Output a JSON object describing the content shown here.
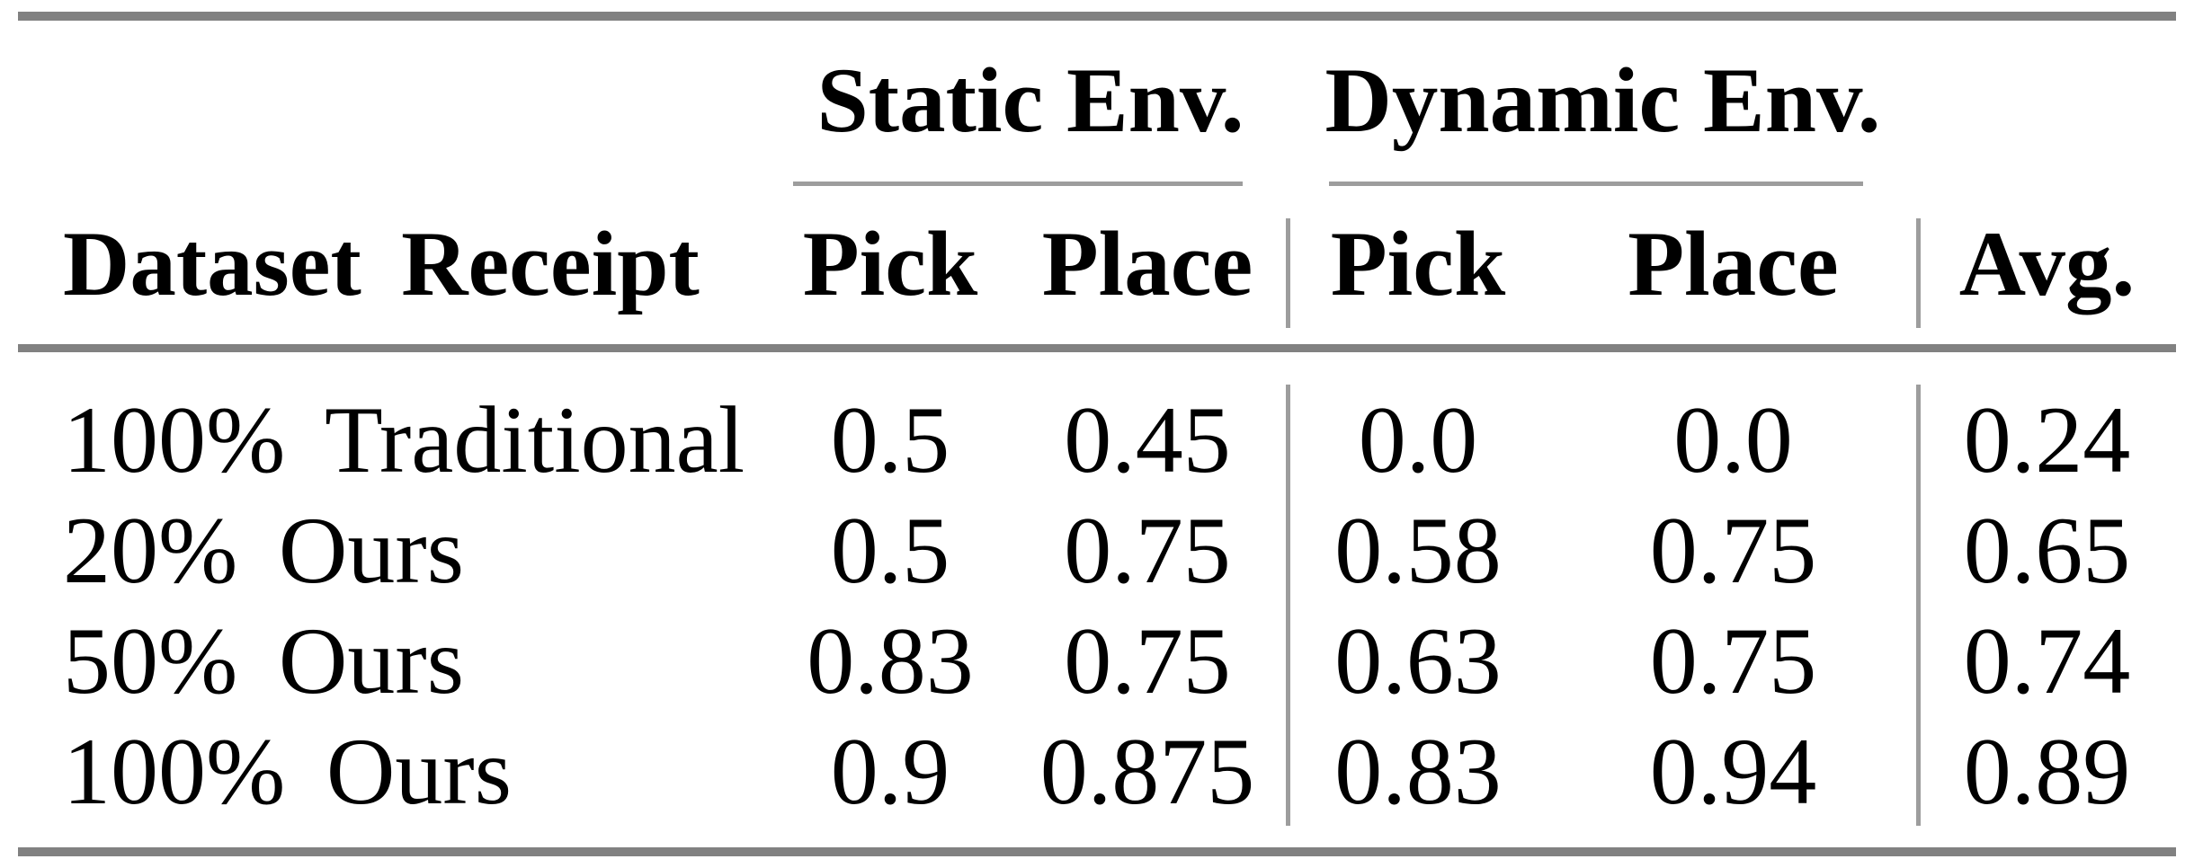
{
  "table": {
    "groups": [
      "Static Env.",
      "Dynamic Env."
    ],
    "columns": [
      "Dataset Receipt",
      "Pick",
      "Place",
      "Pick",
      "Place",
      "Avg."
    ],
    "rows": [
      {
        "label": "100% Traditional",
        "values": [
          "0.5",
          "0.45",
          "0.0",
          "0.0",
          "0.24"
        ]
      },
      {
        "label": "20% Ours",
        "values": [
          "0.5",
          "0.75",
          "0.58",
          "0.75",
          "0.65"
        ]
      },
      {
        "label": "50% Ours",
        "values": [
          "0.83",
          "0.75",
          "0.63",
          "0.75",
          "0.74"
        ]
      },
      {
        "label": "100% Ours",
        "values": [
          "0.9",
          "0.875",
          "0.83",
          "0.94",
          "0.89"
        ]
      }
    ],
    "colors": {
      "text": "#000000",
      "background": "#ffffff",
      "rule_heavy": "#818181",
      "rule_thin": "#9d9d9d"
    }
  },
  "chart_data": {
    "type": "table",
    "title": "",
    "column_groups": [
      {
        "label": "Static Env.",
        "columns": [
          "Pick",
          "Place"
        ]
      },
      {
        "label": "Dynamic Env.",
        "columns": [
          "Pick",
          "Place"
        ]
      }
    ],
    "columns": [
      "Dataset Receipt",
      "Static Env. Pick",
      "Static Env. Place",
      "Dynamic Env. Pick",
      "Dynamic Env. Place",
      "Avg."
    ],
    "rows": [
      {
        "dataset_receipt": "100% Traditional",
        "static_pick": 0.5,
        "static_place": 0.45,
        "dynamic_pick": 0.0,
        "dynamic_place": 0.0,
        "avg": 0.24
      },
      {
        "dataset_receipt": "20% Ours",
        "static_pick": 0.5,
        "static_place": 0.75,
        "dynamic_pick": 0.58,
        "dynamic_place": 0.75,
        "avg": 0.65
      },
      {
        "dataset_receipt": "50% Ours",
        "static_pick": 0.83,
        "static_place": 0.75,
        "dynamic_pick": 0.63,
        "dynamic_place": 0.75,
        "avg": 0.74
      },
      {
        "dataset_receipt": "100% Ours",
        "static_pick": 0.9,
        "static_place": 0.875,
        "dynamic_pick": 0.83,
        "dynamic_place": 0.94,
        "avg": 0.89
      }
    ]
  }
}
